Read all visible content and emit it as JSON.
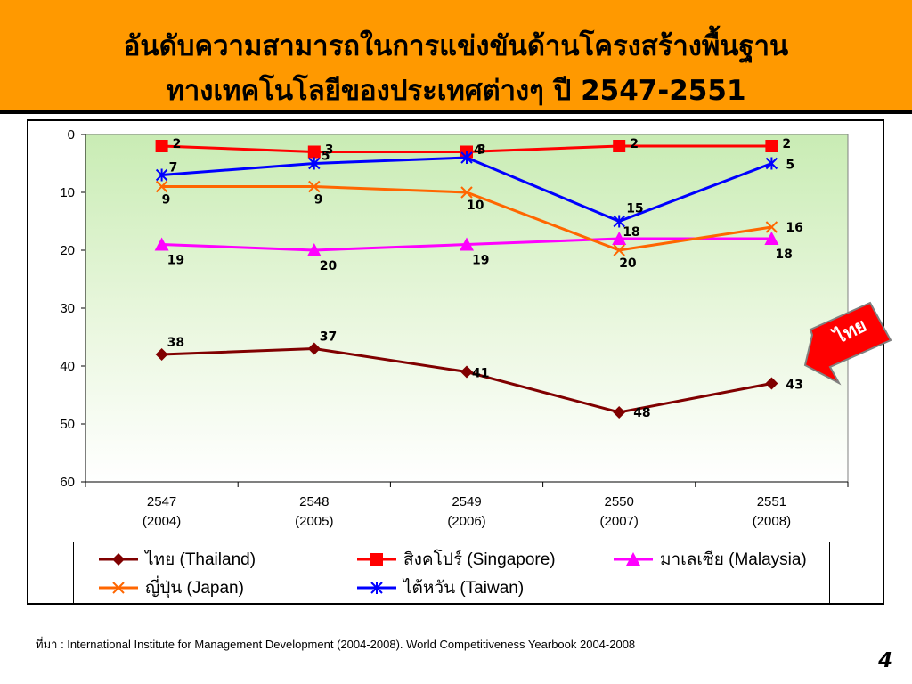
{
  "slide": {
    "title_line1": "อันดับความสามารถในการแข่งขันด้านโครงสร้างพื้นฐาน",
    "title_line2": "ทางเทคโนโลยีของประเทศต่างๆ ปี 2547-2551",
    "source_prefix": "ที่มา",
    "source_text": " : International Institute for Management Development (2004-2008). World Competitiveness Yearbook 2004-2008",
    "page_number": "4",
    "callout_text": "ไทย",
    "callout_color": "#ff0000",
    "title_bg_color": "#ff9900"
  },
  "chart_data": {
    "type": "line",
    "categories": [
      [
        "2547",
        "(2004)"
      ],
      [
        "2548",
        "(2005)"
      ],
      [
        "2549",
        "(2006)"
      ],
      [
        "2550",
        "(2007)"
      ],
      [
        "2551",
        "(2008)"
      ]
    ],
    "yticks": [
      0,
      10,
      20,
      30,
      40,
      50,
      60
    ],
    "ylim": [
      0,
      60
    ],
    "y_reversed": true,
    "plot_background": "gradient green-white",
    "grid": false,
    "legend_placement": "bottom",
    "series": [
      {
        "name": "ไทย (Thailand)",
        "color": "#800000",
        "marker": "diamond",
        "values": [
          38,
          37,
          41,
          48,
          43
        ]
      },
      {
        "name": "สิงคโปร์ (Singapore)",
        "color": "#ff0000",
        "marker": "square",
        "values": [
          2,
          3,
          3,
          2,
          2
        ]
      },
      {
        "name": "มาเลเซีย (Malaysia)",
        "color": "#ff00ff",
        "marker": "triangle",
        "values": [
          19,
          20,
          19,
          18,
          18
        ]
      },
      {
        "name": "ญี่ปุ่น (Japan)",
        "color": "#ff6600",
        "marker": "x",
        "values": [
          9,
          9,
          10,
          20,
          16
        ]
      },
      {
        "name": "ไต้หวัน (Taiwan)",
        "color": "#0000ff",
        "marker": "star",
        "values": [
          7,
          5,
          4,
          15,
          5
        ]
      }
    ]
  }
}
